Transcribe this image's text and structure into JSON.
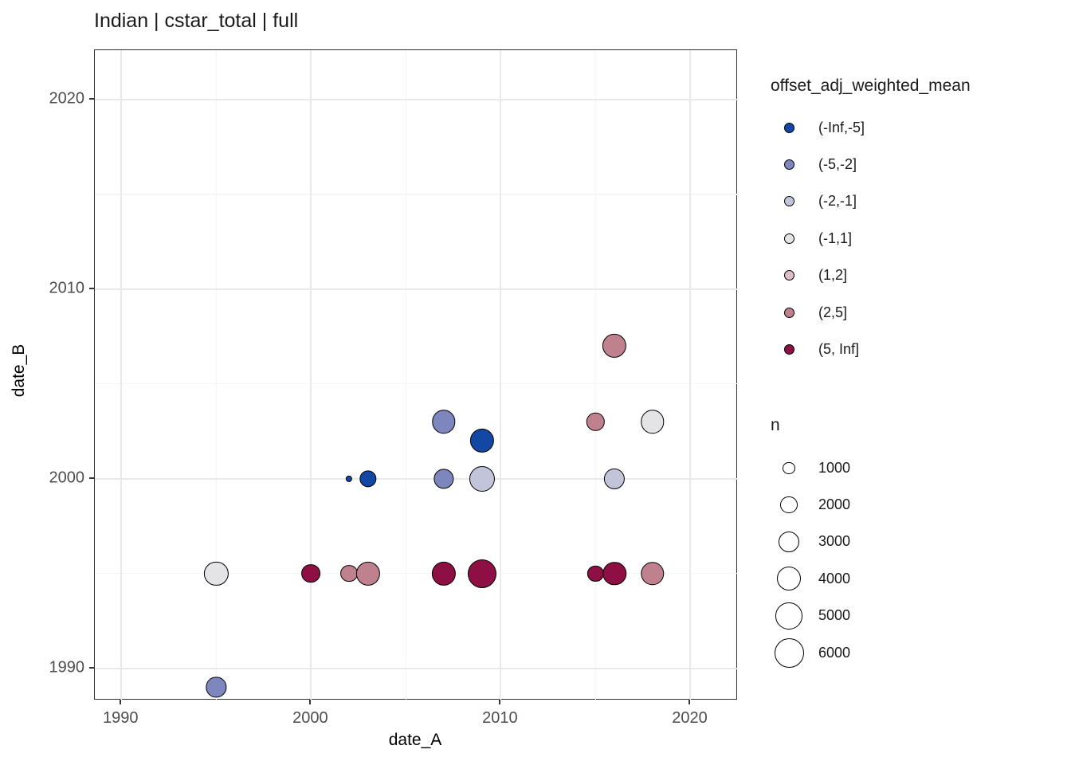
{
  "chart_data": {
    "type": "scatter",
    "title": "Indian | cstar_total | full",
    "xlabel": "date_A",
    "ylabel": "date_B",
    "xlim": [
      1988.6,
      2022.5
    ],
    "ylim": [
      1988.3,
      2022.6
    ],
    "grid": true,
    "x_ticks": [
      1990,
      2000,
      2010,
      2020
    ],
    "x_tick_labels": [
      "1990",
      "2000",
      "2010",
      "2020"
    ],
    "y_ticks": [
      1990,
      2000,
      2010,
      2020
    ],
    "y_tick_labels": [
      "1990",
      "2000",
      "2010",
      "2020"
    ],
    "x_minor_ticks": [
      1995,
      2005,
      2015
    ],
    "y_minor_ticks": [
      1995,
      2005,
      2015
    ],
    "color_legend": {
      "title": "offset_adj_weighted_mean",
      "entries": [
        {
          "label": "(-Inf,-5]",
          "color": "#1347a4"
        },
        {
          "label": "(-5,-2]",
          "color": "#7d87bd"
        },
        {
          "label": "(-2,-1]",
          "color": "#c2c5d9"
        },
        {
          "label": "(-1,1]",
          "color": "#e4e3e5"
        },
        {
          "label": "(1,2]",
          "color": "#ddbec6"
        },
        {
          "label": "(2,5]",
          "color": "#c0818f"
        },
        {
          "label": "(5, Inf]",
          "color": "#8e0f43"
        }
      ]
    },
    "size_legend": {
      "title": "n",
      "entries": [
        {
          "label": "1000",
          "n": 1000
        },
        {
          "label": "2000",
          "n": 2000
        },
        {
          "label": "3000",
          "n": 3000
        },
        {
          "label": "4000",
          "n": 4000
        },
        {
          "label": "5000",
          "n": 5000
        },
        {
          "label": "6000",
          "n": 6000
        }
      ],
      "max_n": 6000
    },
    "points": [
      {
        "x": 1995,
        "y": 1989,
        "bin": "(-5,-2]",
        "n": 2800
      },
      {
        "x": 1995,
        "y": 1995,
        "bin": "(-1,1]",
        "n": 4000
      },
      {
        "x": 2000,
        "y": 1995,
        "bin": "(5, Inf]",
        "n": 2500
      },
      {
        "x": 2002,
        "y": 1995,
        "bin": "(2,5]",
        "n": 2100
      },
      {
        "x": 2002,
        "y": 2000,
        "bin": "(-Inf,-5]",
        "n": 300
      },
      {
        "x": 2003,
        "y": 1995,
        "bin": "(2,5]",
        "n": 4000
      },
      {
        "x": 2003,
        "y": 2000,
        "bin": "(-Inf,-5]",
        "n": 2000
      },
      {
        "x": 2007,
        "y": 1995,
        "bin": "(5, Inf]",
        "n": 4000
      },
      {
        "x": 2007,
        "y": 2000,
        "bin": "(-5,-2]",
        "n": 2800
      },
      {
        "x": 2007,
        "y": 2003,
        "bin": "(-5,-2]",
        "n": 3800
      },
      {
        "x": 2009,
        "y": 1995,
        "bin": "(5, Inf]",
        "n": 5700
      },
      {
        "x": 2009,
        "y": 2000,
        "bin": "(-2,-1]",
        "n": 4500
      },
      {
        "x": 2009,
        "y": 2002,
        "bin": "(-Inf,-5]",
        "n": 4000
      },
      {
        "x": 2015,
        "y": 1995,
        "bin": "(5, Inf]",
        "n": 1800
      },
      {
        "x": 2015,
        "y": 2003,
        "bin": "(2,5]",
        "n": 2200
      },
      {
        "x": 2016,
        "y": 1995,
        "bin": "(5, Inf]",
        "n": 3800
      },
      {
        "x": 2016,
        "y": 2000,
        "bin": "(-2,-1]",
        "n": 3000
      },
      {
        "x": 2016,
        "y": 2007,
        "bin": "(2,5]",
        "n": 4000
      },
      {
        "x": 2018,
        "y": 1995,
        "bin": "(2,5]",
        "n": 3800
      },
      {
        "x": 2018,
        "y": 2003,
        "bin": "(-1,1]",
        "n": 3800
      }
    ]
  }
}
